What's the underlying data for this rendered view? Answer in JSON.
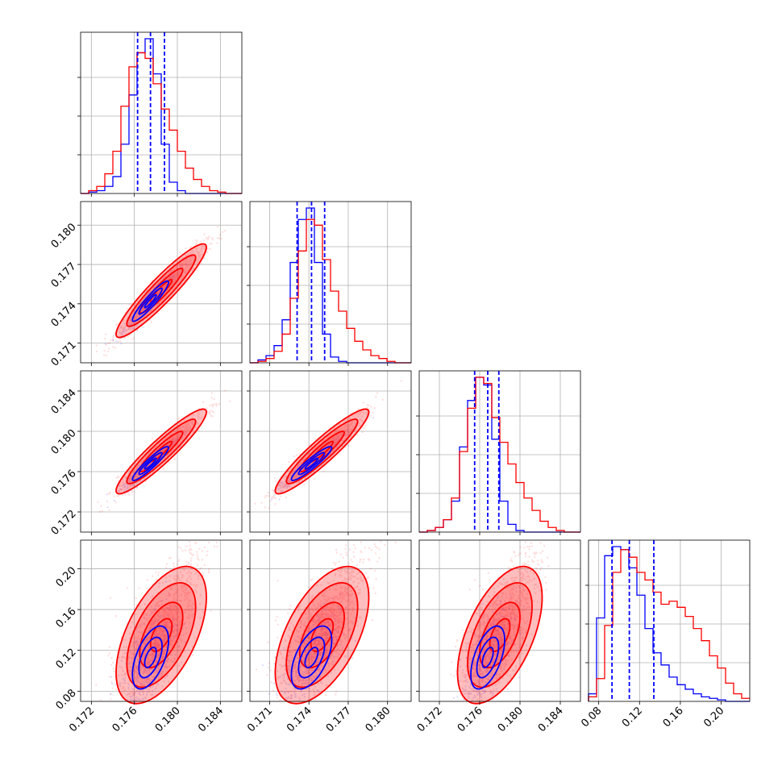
{
  "chart_data": {
    "type": "corner",
    "colors": {
      "blue": "#0000ff",
      "red": "#ff0000",
      "grid": "#b0b0b0"
    },
    "grid": true,
    "parameters": [
      {
        "range": [
          0.171,
          0.186
        ],
        "ticks": [
          "0.172",
          "0.176",
          "0.180",
          "0.184"
        ],
        "tick_values": [
          0.172,
          0.176,
          0.18,
          0.184
        ]
      },
      {
        "range": [
          0.1695,
          0.1818
        ],
        "ticks": [
          "0.171",
          "0.174",
          "0.177",
          "0.180"
        ],
        "tick_values": [
          0.171,
          0.174,
          0.177,
          0.18
        ]
      },
      {
        "range": [
          0.17,
          0.186
        ],
        "ticks": [
          "0.172",
          "0.176",
          "0.180",
          "0.184"
        ],
        "tick_values": [
          0.172,
          0.176,
          0.18,
          0.184
        ]
      },
      {
        "range": [
          0.07,
          0.228
        ],
        "ticks": [
          "0.08",
          "0.12",
          "0.16",
          "0.20"
        ],
        "tick_values": [
          0.08,
          0.12,
          0.16,
          0.2
        ]
      }
    ],
    "diagonal_quantiles_blue": [
      [
        0.1763,
        0.1775,
        0.1788
      ],
      [
        0.1731,
        0.1742,
        0.1752
      ],
      [
        0.1755,
        0.1768,
        0.1779
      ],
      [
        0.093,
        0.11,
        0.134
      ]
    ],
    "series": [
      {
        "name": "",
        "color": "#0000ff",
        "histograms": [
          {
            "edges_start": 0.171,
            "bin_width": 0.00075,
            "counts": [
              0,
              1,
              2,
              5,
              12,
              35,
              70,
              100,
              110,
              85,
              35,
              8,
              2,
              0,
              0,
              0,
              0,
              0,
              0,
              0
            ]
          },
          {
            "edges_start": 0.1695,
            "bin_width": 0.000615,
            "counts": [
              0,
              2,
              5,
              12,
              30,
              70,
              100,
              108,
              70,
              20,
              4,
              1,
              0,
              0,
              0,
              0,
              0,
              0,
              0,
              0
            ]
          },
          {
            "edges_start": 0.17,
            "bin_width": 0.0008,
            "counts": [
              0,
              1,
              3,
              8,
              20,
              55,
              85,
              100,
              95,
              60,
              20,
              5,
              1,
              0,
              0,
              0,
              0,
              0,
              0,
              0
            ]
          },
          {
            "edges_start": 0.07,
            "bin_width": 0.0079,
            "counts": [
              5,
              55,
              96,
              102,
              100,
              88,
              70,
              48,
              32,
              24,
              16,
              11,
              8,
              5,
              3,
              2,
              1,
              0,
              0,
              0
            ]
          }
        ],
        "gaussian": {
          "mean": [
            0.1775,
            0.1742,
            0.1768,
            0.113
          ],
          "sd": [
            0.0012,
            0.0011,
            0.0012,
            0.022
          ]
        }
      },
      {
        "name": "",
        "color": "#ff0000",
        "histograms": [
          {
            "edges_start": 0.171,
            "bin_width": 0.00075,
            "counts": [
              0,
              2,
              5,
              14,
              30,
              62,
              90,
              100,
              96,
              78,
              60,
              45,
              30,
              18,
              10,
              5,
              2,
              1,
              0,
              0
            ]
          },
          {
            "edges_start": 0.1695,
            "bin_width": 0.000615,
            "counts": [
              0,
              1,
              3,
              8,
              20,
              45,
              78,
              100,
              96,
              72,
              50,
              36,
              24,
              15,
              9,
              5,
              3,
              1,
              0,
              0
            ]
          },
          {
            "edges_start": 0.17,
            "bin_width": 0.0008,
            "counts": [
              0,
              1,
              3,
              8,
              22,
              52,
              80,
              100,
              96,
              74,
              58,
              44,
              32,
              22,
              14,
              7,
              3,
              1,
              0,
              0
            ]
          },
          {
            "edges_start": 0.07,
            "bin_width": 0.0079,
            "counts": [
              3,
              15,
              50,
              85,
              100,
              95,
              85,
              80,
              72,
              64,
              66,
              62,
              56,
              48,
              40,
              30,
              22,
              12,
              5,
              2
            ]
          }
        ],
        "gaussian": {
          "mean": [
            0.1785,
            0.175,
            0.178,
            0.135
          ],
          "sd": [
            0.002,
            0.0017,
            0.002,
            0.032
          ]
        }
      }
    ]
  }
}
